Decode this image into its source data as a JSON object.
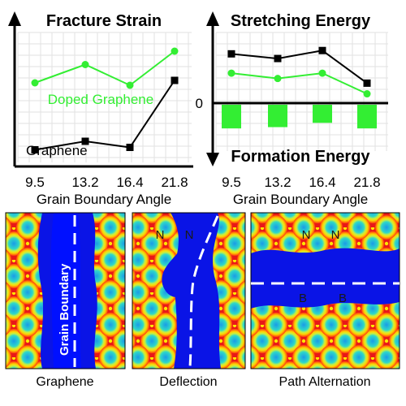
{
  "colors": {
    "green": "#33ee33",
    "black": "#000000",
    "contour_low": "#1020e0",
    "contour_high": "#e82020"
  },
  "chart_data": [
    {
      "type": "line",
      "title": "Fracture Strain",
      "xlabel": "Grain Boundary Angle",
      "ylabel": "",
      "categories": [
        "9.5",
        "13.2",
        "16.4",
        "21.8"
      ],
      "series": [
        {
          "name": "Doped Graphene",
          "values": [
            0.62,
            0.77,
            0.6,
            0.88
          ]
        },
        {
          "name": "Graphene",
          "values": [
            0.07,
            0.14,
            0.09,
            0.64
          ]
        }
      ],
      "ylim": [
        0,
        1
      ],
      "grid": true,
      "legend": "inline-labels"
    },
    {
      "type": "bar",
      "title_top": "Stretching Energy",
      "title_bottom": "Formation Energy",
      "xlabel": "Grain Boundary Angle",
      "categories": [
        "9.5",
        "13.2",
        "16.4",
        "21.8"
      ],
      "series": [
        {
          "name": "",
          "style": "line",
          "color": "black",
          "values": [
            0.74,
            0.67,
            0.79,
            0.3
          ]
        },
        {
          "name": "",
          "style": "line",
          "color": "green",
          "values": [
            0.45,
            0.37,
            0.45,
            0.14
          ]
        },
        {
          "name": "",
          "style": "bar",
          "color": "green",
          "values": [
            -0.55,
            -0.52,
            -0.42,
            -0.55
          ]
        }
      ],
      "ylim": [
        -1,
        1
      ],
      "zero_label": "0",
      "grid": true
    }
  ],
  "panels": [
    {
      "caption": "Graphene",
      "overlay_label": "Grain Boundary",
      "atoms": []
    },
    {
      "caption": "Deflection",
      "overlay_label": "",
      "atoms": [
        "N",
        "N"
      ]
    },
    {
      "caption": "Path Alternation",
      "overlay_label": "",
      "atoms": [
        "N",
        "N",
        "B",
        "B"
      ]
    }
  ]
}
